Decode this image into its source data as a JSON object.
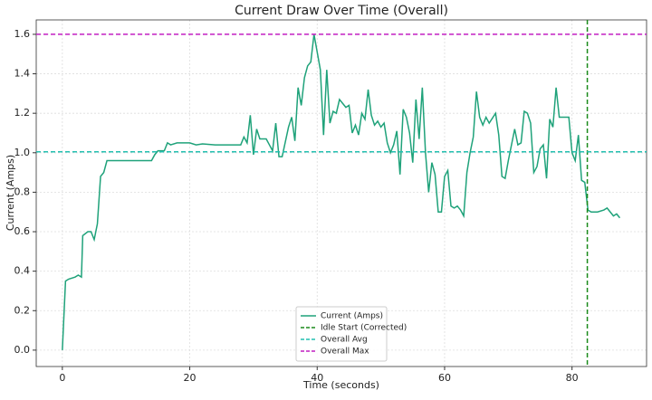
{
  "chart_data": {
    "type": "line",
    "title": "Current Draw Over Time (Overall)",
    "x_label": "Time (seconds)",
    "y_label": "Current (Amps)",
    "x": [
      0,
      0.5,
      1,
      2,
      2.5,
      3,
      3.2,
      4,
      4.5,
      5,
      5.5,
      6,
      6.5,
      7,
      14,
      14.5,
      15,
      16,
      16.5,
      17,
      18,
      20,
      21,
      22,
      24,
      28,
      28.5,
      29,
      29.5,
      30,
      30.5,
      31,
      32,
      32.5,
      33,
      33.5,
      34,
      34.5,
      35.5,
      36,
      36.5,
      37,
      37.5,
      38,
      38.5,
      39,
      39.5,
      40,
      40.5,
      41,
      41.5,
      42,
      42.5,
      43,
      43.5,
      44,
      44.5,
      45,
      45.5,
      46,
      46.5,
      47,
      47.5,
      48,
      48.5,
      49,
      49.5,
      50,
      50.5,
      51,
      51.5,
      52,
      52.5,
      53,
      53.5,
      54,
      54.5,
      55,
      55.5,
      56,
      56.5,
      57,
      57.5,
      58,
      58.5,
      59,
      59.5,
      60,
      60.5,
      61,
      61.5,
      62,
      62.5,
      63,
      63.5,
      64,
      64.5,
      65,
      65.5,
      66,
      66.5,
      67,
      68,
      68.5,
      69,
      69.5,
      70,
      71,
      71.5,
      72,
      72.5,
      73,
      73.5,
      74,
      74.5,
      75,
      75.5,
      76,
      76.5,
      77,
      77.5,
      78,
      79,
      79.5,
      80,
      80.5,
      81,
      81.5,
      82,
      82.5,
      83,
      84,
      85,
      85.5,
      86,
      86.5,
      87,
      87.5
    ],
    "series": [
      {
        "name": "Current (Amps)",
        "color": "#1fa27a",
        "values": [
          0,
          0.35,
          0.36,
          0.37,
          0.38,
          0.37,
          0.58,
          0.6,
          0.6,
          0.56,
          0.64,
          0.88,
          0.9,
          0.96,
          0.96,
          0.99,
          1.01,
          1.01,
          1.05,
          1.04,
          1.05,
          1.05,
          1.04,
          1.045,
          1.04,
          1.04,
          1.08,
          1.05,
          1.19,
          0.99,
          1.12,
          1.07,
          1.07,
          1.04,
          1.01,
          1.15,
          0.98,
          0.98,
          1.13,
          1.18,
          1.06,
          1.33,
          1.24,
          1.38,
          1.44,
          1.46,
          1.6,
          1.51,
          1.42,
          1.09,
          1.42,
          1.15,
          1.21,
          1.2,
          1.27,
          1.25,
          1.23,
          1.24,
          1.1,
          1.14,
          1.09,
          1.2,
          1.17,
          1.32,
          1.19,
          1.14,
          1.16,
          1.13,
          1.15,
          1.05,
          1.0,
          1.04,
          1.11,
          0.89,
          1.22,
          1.18,
          1.1,
          0.95,
          1.27,
          1.07,
          1.33,
          1.0,
          0.8,
          0.95,
          0.89,
          0.7,
          0.7,
          0.88,
          0.91,
          0.73,
          0.72,
          0.73,
          0.71,
          0.68,
          0.9,
          1.0,
          1.08,
          1.31,
          1.18,
          1.14,
          1.18,
          1.15,
          1.2,
          1.09,
          0.88,
          0.87,
          0.96,
          1.12,
          1.04,
          1.05,
          1.21,
          1.2,
          1.15,
          0.9,
          0.93,
          1.02,
          1.04,
          0.87,
          1.17,
          1.13,
          1.33,
          1.18,
          1.18,
          1.18,
          1.0,
          0.96,
          1.09,
          0.86,
          0.85,
          0.71,
          0.7,
          0.7,
          0.71,
          0.72,
          0.7,
          0.68,
          0.69,
          0.67
        ]
      }
    ],
    "reference_lines": [
      {
        "name": "Idle Start (Corrected)",
        "color": "#1a8a1a",
        "orientation": "vertical",
        "value": 82.4
      },
      {
        "name": "Overall Avg",
        "color": "#22bfb0",
        "orientation": "horizontal",
        "value": 1.005
      },
      {
        "name": "Overall Max",
        "color": "#c21ec2",
        "orientation": "horizontal",
        "value": 1.6
      }
    ],
    "xlim": [
      -4.1,
      91.7
    ],
    "ylim": [
      -0.083,
      1.673
    ],
    "xticks": [
      0,
      20,
      40,
      60,
      80
    ],
    "yticks": [
      {
        "value": 0,
        "label": "0.0"
      },
      0.2,
      0.4,
      0.6,
      0.8,
      {
        "value": 1,
        "label": "1.0"
      },
      1.2,
      1.4,
      1.6
    ],
    "grid": true,
    "legend": "lower center"
  }
}
